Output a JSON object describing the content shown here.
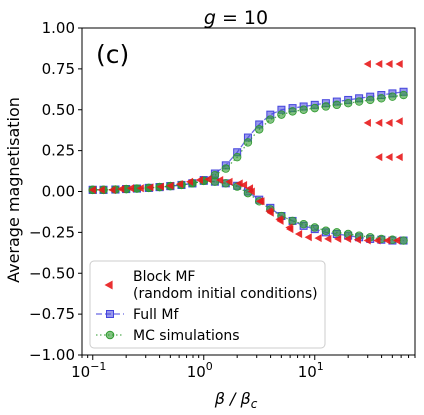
{
  "chart_data": {
    "type": "scatter",
    "title": "g = 10",
    "panel_label": "(c)",
    "xlabel": "β / β_c",
    "ylabel": "Average magnetisation",
    "xscale": "log",
    "xlim": [
      0.08,
      80
    ],
    "ylim": [
      -1.0,
      1.0
    ],
    "yticks": [
      "1.00",
      "0.75",
      "0.50",
      "0.25",
      "0.00",
      "−0.25",
      "−0.50",
      "−0.75",
      "−1.00"
    ],
    "ytick_values": [
      1.0,
      0.75,
      0.5,
      0.25,
      0.0,
      -0.25,
      -0.5,
      -0.75,
      -1.0
    ],
    "xticks": [
      {
        "value": 0.1,
        "base": "10",
        "exp": "−1"
      },
      {
        "value": 1,
        "base": "10",
        "exp": "0"
      },
      {
        "value": 10,
        "base": "10",
        "exp": "1"
      }
    ],
    "grid": false,
    "legend_position": "lower-left",
    "series": [
      {
        "name": "Block MF\n(random initial conditions)",
        "marker": "triangle-left",
        "color": "#e8191b",
        "x": [
          0.1,
          0.12,
          0.15,
          0.18,
          0.22,
          0.27,
          0.33,
          0.41,
          0.5,
          0.61,
          0.75,
          0.92,
          1.1,
          1.4,
          1.7,
          2.1,
          2.6,
          3.2,
          3.9,
          4.8,
          5.9,
          7.2,
          8.8,
          10.8,
          13.2,
          16.2,
          19.9,
          24.4,
          29.9,
          36.6,
          44.9,
          55,
          2.3,
          2.7,
          3.3,
          4.0,
          4.9,
          6.0,
          30,
          38,
          47,
          58,
          30,
          38,
          47,
          58,
          38,
          47,
          58
        ],
        "y": [
          0.01,
          0.01,
          0.01,
          0.015,
          0.02,
          0.02,
          0.025,
          0.03,
          0.035,
          0.045,
          0.06,
          0.07,
          0.075,
          0.07,
          0.06,
          0.05,
          0.02,
          -0.06,
          -0.12,
          -0.17,
          -0.22,
          -0.26,
          -0.28,
          -0.285,
          -0.29,
          -0.29,
          -0.29,
          -0.295,
          -0.3,
          -0.3,
          -0.3,
          -0.3,
          0.04,
          0.0,
          -0.06,
          -0.13,
          -0.18,
          -0.23,
          0.78,
          0.78,
          0.78,
          0.78,
          0.42,
          0.42,
          0.42,
          0.43,
          0.21,
          0.21,
          0.21
        ]
      },
      {
        "name": "Full Mf",
        "marker": "square",
        "linestyle": "dashed",
        "color": "#4444dd",
        "branches": [
          {
            "x": [
              0.1,
              0.125,
              0.16,
              0.2,
              0.25,
              0.32,
              0.4,
              0.5,
              0.63,
              0.79,
              1.0,
              1.26,
              1.58,
              2.0,
              2.5,
              3.16,
              3.98,
              5.01,
              6.31,
              7.94,
              10.0,
              12.6,
              15.8,
              20.0,
              25.1,
              31.6,
              39.8,
              50.1,
              63.1
            ],
            "y": [
              0.01,
              0.01,
              0.012,
              0.015,
              0.018,
              0.022,
              0.027,
              0.033,
              0.04,
              0.05,
              0.07,
              0.11,
              0.16,
              0.24,
              0.33,
              0.41,
              0.47,
              0.5,
              0.51,
              0.52,
              0.53,
              0.54,
              0.55,
              0.56,
              0.57,
              0.58,
              0.59,
              0.6,
              0.61
            ]
          },
          {
            "x": [
              0.1,
              0.125,
              0.16,
              0.2,
              0.25,
              0.32,
              0.4,
              0.5,
              0.63,
              0.79,
              1.0,
              1.26,
              1.58,
              2.0,
              2.5,
              3.16,
              3.98,
              5.01,
              6.31,
              7.94,
              10.0,
              12.6,
              15.8,
              20.0,
              25.1,
              31.6,
              39.8,
              50.1,
              63.1
            ],
            "y": [
              0.01,
              0.01,
              0.012,
              0.015,
              0.018,
              0.022,
              0.027,
              0.033,
              0.04,
              0.05,
              0.065,
              0.06,
              0.05,
              0.035,
              0.0,
              -0.05,
              -0.1,
              -0.15,
              -0.18,
              -0.21,
              -0.23,
              -0.25,
              -0.26,
              -0.27,
              -0.28,
              -0.29,
              -0.295,
              -0.3,
              -0.3
            ]
          }
        ]
      },
      {
        "name": "MC simulations",
        "marker": "circle",
        "linestyle": "dotted",
        "color": "#2e9a2e",
        "branches": [
          {
            "x": [
              0.1,
              0.125,
              0.16,
              0.2,
              0.25,
              0.32,
              0.4,
              0.5,
              0.63,
              0.79,
              1.0,
              1.26,
              1.58,
              2.0,
              2.5,
              3.16,
              3.98,
              5.01,
              6.31,
              7.94,
              10.0,
              12.6,
              15.8,
              20.0,
              25.1,
              31.6,
              39.8,
              50.1,
              63.1
            ],
            "y": [
              0.01,
              0.01,
              0.012,
              0.015,
              0.018,
              0.022,
              0.027,
              0.033,
              0.04,
              0.05,
              0.065,
              0.1,
              0.14,
              0.21,
              0.3,
              0.38,
              0.44,
              0.47,
              0.49,
              0.5,
              0.51,
              0.52,
              0.53,
              0.54,
              0.55,
              0.56,
              0.57,
              0.58,
              0.59
            ]
          },
          {
            "x": [
              0.1,
              0.125,
              0.16,
              0.2,
              0.25,
              0.32,
              0.4,
              0.5,
              0.63,
              0.79,
              1.0,
              1.26,
              1.58,
              2.0,
              2.5,
              3.16,
              3.98,
              5.01,
              6.31,
              7.94,
              10.0,
              12.6,
              15.8,
              20.0,
              25.1,
              31.6,
              39.8,
              50.1,
              63.1
            ],
            "y": [
              0.01,
              0.01,
              0.012,
              0.015,
              0.018,
              0.022,
              0.027,
              0.033,
              0.04,
              0.05,
              0.065,
              0.06,
              0.05,
              0.03,
              -0.01,
              -0.06,
              -0.11,
              -0.15,
              -0.18,
              -0.2,
              -0.22,
              -0.24,
              -0.25,
              -0.26,
              -0.27,
              -0.28,
              -0.29,
              -0.295,
              -0.3
            ]
          }
        ]
      }
    ],
    "legend": [
      {
        "line1": "Block MF",
        "line2": "(random initial conditions)"
      },
      {
        "line1": "Full Mf"
      },
      {
        "line1": "MC simulations"
      }
    ]
  }
}
